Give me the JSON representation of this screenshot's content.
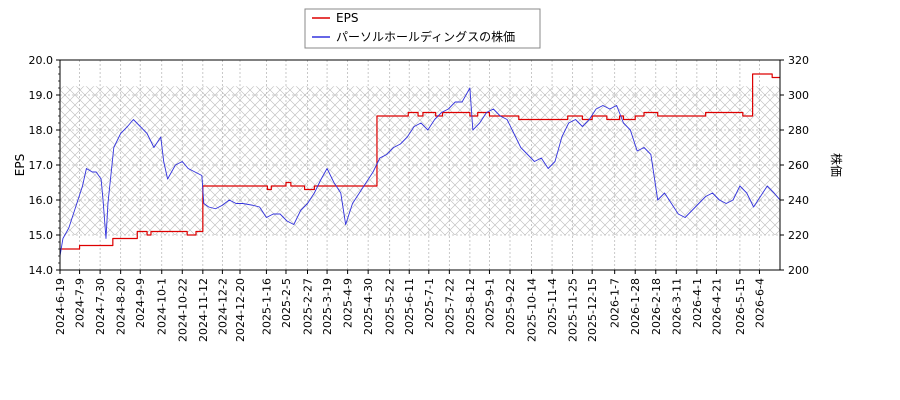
{
  "chart_data": {
    "type": "line",
    "legend": {
      "placement": "top-center",
      "entries": [
        {
          "label": "EPS",
          "color": "#dd0000"
        },
        {
          "label": "パーソルホールディングスの株価",
          "color": "#3333dd"
        }
      ]
    },
    "y_left": {
      "label": "EPS",
      "range": [
        14.0,
        20.0
      ],
      "ticks": [
        "14.0",
        "15.0",
        "16.0",
        "17.0",
        "18.0",
        "19.0",
        "20.0"
      ]
    },
    "y_right": {
      "label": "株価",
      "range": [
        200,
        320
      ],
      "ticks": [
        "200",
        "220",
        "240",
        "260",
        "280",
        "300",
        "320"
      ]
    },
    "x_range": [
      "2024-06-19",
      "2026-06-25"
    ],
    "x_ticks": [
      "2024-6-19",
      "2024-7-9",
      "2024-7-30",
      "2024-8-20",
      "2024-9-9",
      "2024-10-1",
      "2024-10-22",
      "2024-11-12",
      "2024-12-2",
      "2024-12-20",
      "2025-1-16",
      "2025-2-5",
      "2025-2-27",
      "2025-3-19",
      "2025-4-9",
      "2025-4-30",
      "2025-5-22",
      "2025-6-11",
      "2025-7-1",
      "2025-7-22",
      "2025-8-12",
      "2025-9-1",
      "2025-9-22",
      "2025-10-14",
      "2025-11-4",
      "2025-11-25",
      "2025-12-15",
      "2026-1-7",
      "2026-1-28",
      "2026-2-18",
      "2026-3-11",
      "2026-4-1",
      "2026-4-21",
      "2026-5-15",
      "2026-6-4"
    ],
    "hatched_band": {
      "y_left": [
        15.0,
        19.25
      ]
    },
    "series": [
      {
        "name": "EPS",
        "axis": "left",
        "color": "#dd0000",
        "points": [
          [
            "2024-06-19",
            14.6
          ],
          [
            "2024-07-09",
            14.6
          ],
          [
            "2024-07-09",
            14.7
          ],
          [
            "2024-08-12",
            14.7
          ],
          [
            "2024-08-12",
            14.9
          ],
          [
            "2024-09-06",
            14.9
          ],
          [
            "2024-09-06",
            15.1
          ],
          [
            "2024-09-16",
            15.1
          ],
          [
            "2024-09-16",
            15.0
          ],
          [
            "2024-09-20",
            15.0
          ],
          [
            "2024-09-20",
            15.1
          ],
          [
            "2024-10-27",
            15.1
          ],
          [
            "2024-10-27",
            15.0
          ],
          [
            "2024-11-05",
            15.0
          ],
          [
            "2024-11-05",
            15.1
          ],
          [
            "2024-11-12",
            15.1
          ],
          [
            "2024-11-12",
            16.4
          ],
          [
            "2025-01-17",
            16.4
          ],
          [
            "2025-01-17",
            16.3
          ],
          [
            "2025-01-21",
            16.3
          ],
          [
            "2025-01-21",
            16.4
          ],
          [
            "2025-02-05",
            16.4
          ],
          [
            "2025-02-05",
            16.5
          ],
          [
            "2025-02-10",
            16.5
          ],
          [
            "2025-02-10",
            16.4
          ],
          [
            "2025-02-24",
            16.4
          ],
          [
            "2025-02-24",
            16.3
          ],
          [
            "2025-03-06",
            16.3
          ],
          [
            "2025-03-06",
            16.4
          ],
          [
            "2025-05-09",
            16.4
          ],
          [
            "2025-05-09",
            18.4
          ],
          [
            "2025-06-10",
            18.4
          ],
          [
            "2025-06-10",
            18.5
          ],
          [
            "2025-06-20",
            18.5
          ],
          [
            "2025-06-20",
            18.4
          ],
          [
            "2025-06-25",
            18.4
          ],
          [
            "2025-06-25",
            18.5
          ],
          [
            "2025-07-08",
            18.5
          ],
          [
            "2025-07-08",
            18.4
          ],
          [
            "2025-07-15",
            18.4
          ],
          [
            "2025-07-15",
            18.5
          ],
          [
            "2025-08-12",
            18.5
          ],
          [
            "2025-08-12",
            18.4
          ],
          [
            "2025-08-20",
            18.4
          ],
          [
            "2025-08-20",
            18.5
          ],
          [
            "2025-09-01",
            18.5
          ],
          [
            "2025-09-01",
            18.4
          ],
          [
            "2025-10-01",
            18.4
          ],
          [
            "2025-10-01",
            18.3
          ],
          [
            "2025-11-20",
            18.3
          ],
          [
            "2025-11-20",
            18.4
          ],
          [
            "2025-12-05",
            18.4
          ],
          [
            "2025-12-05",
            18.3
          ],
          [
            "2025-12-15",
            18.3
          ],
          [
            "2025-12-15",
            18.4
          ],
          [
            "2025-12-30",
            18.4
          ],
          [
            "2025-12-30",
            18.3
          ],
          [
            "2026-01-12",
            18.3
          ],
          [
            "2026-01-12",
            18.4
          ],
          [
            "2026-01-16",
            18.4
          ],
          [
            "2026-01-16",
            18.3
          ],
          [
            "2026-01-28",
            18.3
          ],
          [
            "2026-01-28",
            18.4
          ],
          [
            "2026-02-06",
            18.4
          ],
          [
            "2026-02-06",
            18.5
          ],
          [
            "2026-02-20",
            18.5
          ],
          [
            "2026-02-20",
            18.4
          ],
          [
            "2026-04-10",
            18.4
          ],
          [
            "2026-04-10",
            18.5
          ],
          [
            "2026-05-18",
            18.5
          ],
          [
            "2026-05-18",
            18.4
          ],
          [
            "2026-05-28",
            18.4
          ],
          [
            "2026-05-28",
            19.6
          ],
          [
            "2026-06-17",
            19.6
          ],
          [
            "2026-06-17",
            19.5
          ],
          [
            "2026-06-25",
            19.5
          ]
        ]
      },
      {
        "name": "パーソルホールディングスの株価",
        "axis": "right",
        "color": "#3333dd",
        "points": [
          [
            "2024-06-19",
            208
          ],
          [
            "2024-06-22",
            218
          ],
          [
            "2024-06-28",
            224
          ],
          [
            "2024-07-05",
            236
          ],
          [
            "2024-07-12",
            248
          ],
          [
            "2024-07-16",
            258
          ],
          [
            "2024-07-22",
            256
          ],
          [
            "2024-07-26",
            256
          ],
          [
            "2024-07-31",
            252
          ],
          [
            "2024-08-02",
            240
          ],
          [
            "2024-08-05",
            218
          ],
          [
            "2024-08-07",
            238
          ],
          [
            "2024-08-13",
            270
          ],
          [
            "2024-08-20",
            278
          ],
          [
            "2024-08-27",
            282
          ],
          [
            "2024-09-02",
            286
          ],
          [
            "2024-09-09",
            282
          ],
          [
            "2024-09-16",
            278
          ],
          [
            "2024-09-23",
            270
          ],
          [
            "2024-09-30",
            276
          ],
          [
            "2024-10-03",
            262
          ],
          [
            "2024-10-07",
            252
          ],
          [
            "2024-10-15",
            260
          ],
          [
            "2024-10-22",
            262
          ],
          [
            "2024-10-28",
            258
          ],
          [
            "2024-11-04",
            256
          ],
          [
            "2024-11-11",
            254
          ],
          [
            "2024-11-13",
            238
          ],
          [
            "2024-11-18",
            236
          ],
          [
            "2024-11-25",
            235
          ],
          [
            "2024-12-02",
            237
          ],
          [
            "2024-12-09",
            240
          ],
          [
            "2024-12-16",
            238
          ],
          [
            "2024-12-23",
            238
          ],
          [
            "2025-01-02",
            237
          ],
          [
            "2025-01-09",
            236
          ],
          [
            "2025-01-16",
            230
          ],
          [
            "2025-01-23",
            232
          ],
          [
            "2025-01-30",
            232
          ],
          [
            "2025-02-06",
            228
          ],
          [
            "2025-02-13",
            226
          ],
          [
            "2025-02-20",
            234
          ],
          [
            "2025-02-27",
            238
          ],
          [
            "2025-03-06",
            244
          ],
          [
            "2025-03-13",
            252
          ],
          [
            "2025-03-19",
            258
          ],
          [
            "2025-03-26",
            250
          ],
          [
            "2025-04-02",
            244
          ],
          [
            "2025-04-07",
            226
          ],
          [
            "2025-04-14",
            238
          ],
          [
            "2025-04-21",
            244
          ],
          [
            "2025-04-28",
            250
          ],
          [
            "2025-05-05",
            256
          ],
          [
            "2025-05-12",
            264
          ],
          [
            "2025-05-19",
            266
          ],
          [
            "2025-05-26",
            270
          ],
          [
            "2025-06-02",
            272
          ],
          [
            "2025-06-09",
            276
          ],
          [
            "2025-06-16",
            282
          ],
          [
            "2025-06-23",
            284
          ],
          [
            "2025-06-30",
            280
          ],
          [
            "2025-07-07",
            286
          ],
          [
            "2025-07-14",
            290
          ],
          [
            "2025-07-21",
            292
          ],
          [
            "2025-07-28",
            296
          ],
          [
            "2025-08-04",
            296
          ],
          [
            "2025-08-08",
            300
          ],
          [
            "2025-08-12",
            304
          ],
          [
            "2025-08-15",
            280
          ],
          [
            "2025-08-22",
            284
          ],
          [
            "2025-08-29",
            290
          ],
          [
            "2025-09-05",
            292
          ],
          [
            "2025-09-12",
            288
          ],
          [
            "2025-09-19",
            286
          ],
          [
            "2025-09-26",
            278
          ],
          [
            "2025-10-03",
            270
          ],
          [
            "2025-10-10",
            266
          ],
          [
            "2025-10-17",
            262
          ],
          [
            "2025-10-24",
            264
          ],
          [
            "2025-10-31",
            258
          ],
          [
            "2025-11-07",
            262
          ],
          [
            "2025-11-14",
            276
          ],
          [
            "2025-11-21",
            284
          ],
          [
            "2025-11-28",
            286
          ],
          [
            "2025-12-05",
            282
          ],
          [
            "2025-12-12",
            286
          ],
          [
            "2025-12-19",
            292
          ],
          [
            "2025-12-26",
            294
          ],
          [
            "2026-01-02",
            292
          ],
          [
            "2026-01-09",
            294
          ],
          [
            "2026-01-16",
            284
          ],
          [
            "2026-01-23",
            280
          ],
          [
            "2026-01-30",
            268
          ],
          [
            "2026-02-06",
            270
          ],
          [
            "2026-02-13",
            266
          ],
          [
            "2026-02-20",
            240
          ],
          [
            "2026-02-27",
            244
          ],
          [
            "2026-03-06",
            238
          ],
          [
            "2026-03-13",
            232
          ],
          [
            "2026-03-20",
            230
          ],
          [
            "2026-03-27",
            234
          ],
          [
            "2026-04-03",
            238
          ],
          [
            "2026-04-10",
            242
          ],
          [
            "2026-04-17",
            244
          ],
          [
            "2026-04-24",
            240
          ],
          [
            "2026-05-01",
            238
          ],
          [
            "2026-05-08",
            240
          ],
          [
            "2026-05-15",
            248
          ],
          [
            "2026-05-22",
            244
          ],
          [
            "2026-05-29",
            236
          ],
          [
            "2026-06-05",
            242
          ],
          [
            "2026-06-12",
            248
          ],
          [
            "2026-06-19",
            244
          ],
          [
            "2026-06-25",
            240
          ]
        ]
      }
    ]
  }
}
